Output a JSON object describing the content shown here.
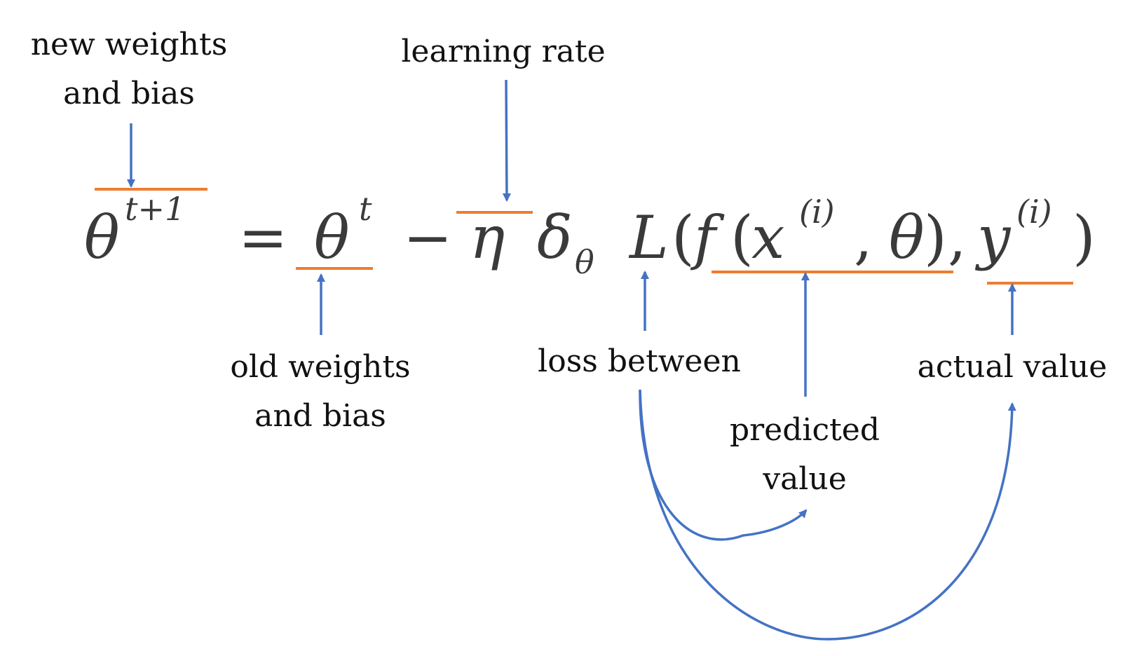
{
  "labels": {
    "new_weights_line1": "new weights",
    "new_weights_line2": "and bias",
    "learning_rate": "learning rate",
    "old_weights_line1": "old weights",
    "old_weights_line2": "and bias",
    "loss_between": "loss between",
    "predicted_line1": "predicted",
    "predicted_line2": "value",
    "actual_value": "actual value"
  },
  "equation": {
    "theta": "θ",
    "sup_t_plus_1": "t+1",
    "equals": "=",
    "sup_t": "t",
    "minus": "−",
    "eta": "η",
    "delta": "δ",
    "sub_theta": "θ",
    "L": "L",
    "open_paren": "(",
    "f": "f",
    "x": "x",
    "sup_i": "(i)",
    "comma": ",",
    "close_paren": ")",
    "y": "y"
  },
  "colors": {
    "arrow": "#4472c4",
    "underline": "#ed7d31",
    "text": "#111111",
    "math": "#3a3a3a"
  }
}
